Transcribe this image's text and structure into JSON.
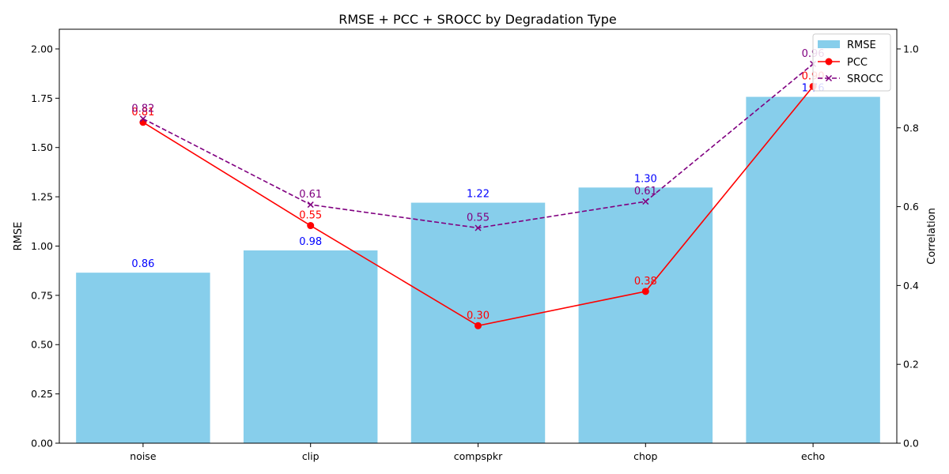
{
  "chart_data": {
    "type": "bar",
    "title": "RMSE + PCC + SROCC by Degradation Type",
    "xlabel": "",
    "ylabel": "RMSE",
    "y2label": "Correlation",
    "categories": [
      "noise",
      "clip",
      "compspkr",
      "chop",
      "echo"
    ],
    "ylim": [
      0,
      2.1
    ],
    "y2lim": [
      0,
      1.05
    ],
    "yticks": [
      "0.00",
      "0.25",
      "0.50",
      "0.75",
      "1.00",
      "1.25",
      "1.50",
      "1.75",
      "2.00"
    ],
    "y2ticks": [
      "0.0",
      "0.2",
      "0.4",
      "0.6",
      "0.8",
      "1.0"
    ],
    "legend_position": "top-right",
    "series": [
      {
        "name": "RMSE",
        "kind": "bar",
        "axis": "left",
        "color": "#87ceeb",
        "label_color": "#0000ff",
        "values": [
          0.865,
          0.978,
          1.22,
          1.297,
          1.757
        ],
        "labels": [
          "0.86",
          "0.98",
          "1.22",
          "1.30",
          "1.76"
        ]
      },
      {
        "name": "PCC",
        "kind": "line",
        "axis": "right",
        "color": "#ff0000",
        "label_color": "#ff0000",
        "style": "solid",
        "marker": "o",
        "values": [
          0.814,
          0.552,
          0.298,
          0.385,
          0.905
        ],
        "labels": [
          "0.81",
          "0.55",
          "0.30",
          "0.38",
          "0.90"
        ]
      },
      {
        "name": "SROCC",
        "kind": "line",
        "axis": "right",
        "color": "#800080",
        "label_color": "#800080",
        "style": "dashed",
        "marker": "x",
        "values": [
          0.823,
          0.605,
          0.546,
          0.613,
          0.962
        ],
        "labels": [
          "0.82",
          "0.61",
          "0.55",
          "0.61",
          "0.96"
        ]
      }
    ]
  }
}
